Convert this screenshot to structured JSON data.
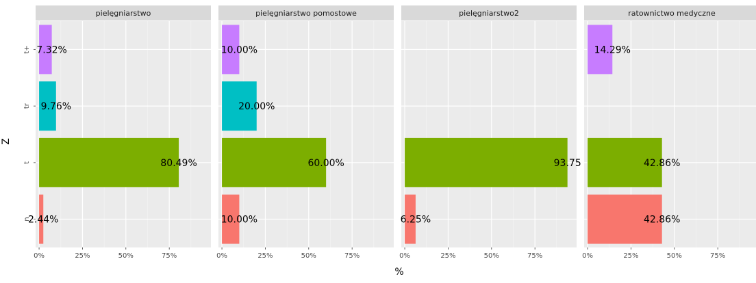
{
  "chart_data": {
    "type": "bar",
    "orientation": "horizontal",
    "facet_by": "program",
    "xlabel": "%",
    "ylabel": "Z",
    "xlim": [
      -0.02,
      0.99
    ],
    "x_ticks": [
      {
        "value": 0,
        "label": "0%"
      },
      {
        "value": 0.25,
        "label": "25%"
      },
      {
        "value": 0.5,
        "label": "50%"
      },
      {
        "value": 0.75,
        "label": "75%"
      }
    ],
    "y_categories": [
      "n",
      "t",
      "tr",
      "t+"
    ],
    "category_colors": {
      "n": "#F8766D",
      "t": "#7CAE00",
      "tr": "#00BFC4",
      "t+": "#C77CFF"
    },
    "grid": true,
    "legend": "none",
    "panel_background": "#EBEBEB",
    "strip_background": "#D9D9D9",
    "panels": [
      {
        "title": "pielęgniarstwo",
        "bars": [
          {
            "category": "n",
            "value": 0.0244,
            "label": "2.44%"
          },
          {
            "category": "t",
            "value": 0.8049,
            "label": "80.49%"
          },
          {
            "category": "tr",
            "value": 0.0976,
            "label": "9.76%"
          },
          {
            "category": "t+",
            "value": 0.0732,
            "label": "7.32%"
          }
        ]
      },
      {
        "title": "pielęgniarstwo pomostowe",
        "bars": [
          {
            "category": "n",
            "value": 0.1,
            "label": "10.00%"
          },
          {
            "category": "t",
            "value": 0.6,
            "label": "60.00%"
          },
          {
            "category": "tr",
            "value": 0.2,
            "label": "20.00%"
          },
          {
            "category": "t+",
            "value": 0.1,
            "label": "10.00%"
          }
        ]
      },
      {
        "title": "pielęgniarstwo2",
        "bars": [
          {
            "category": "n",
            "value": 0.0625,
            "label": "6.25%"
          },
          {
            "category": "t",
            "value": 0.9375,
            "label": "93.75"
          }
        ]
      },
      {
        "title": "ratownictwo medyczne",
        "bars": [
          {
            "category": "n",
            "value": 0.4286,
            "label": "42.86%"
          },
          {
            "category": "t",
            "value": 0.4286,
            "label": "42.86%"
          },
          {
            "category": "t+",
            "value": 0.1429,
            "label": "14.29%"
          }
        ]
      }
    ]
  }
}
